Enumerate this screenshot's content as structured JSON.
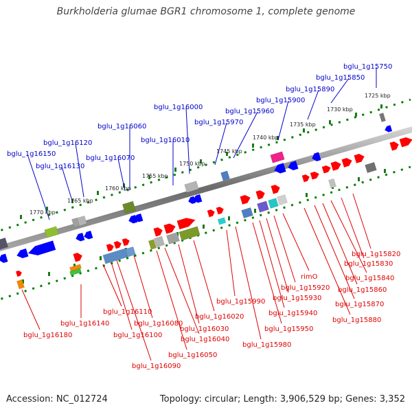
{
  "title": "Burkholderia glumae BGR1 chromosome 1, complete genome",
  "footer": {
    "accession": "Accession: NC_012724",
    "summary": "Topology: circular; Length: 3,906,529 bp; Genes: 3,352"
  },
  "colors": {
    "forward_label": "#0000cc",
    "reverse_label": "#dd0000",
    "forward_gene": "#0000ff",
    "reverse_gene": "#ff0000",
    "axis": "#888888",
    "tick": "#008000"
  },
  "ticks": [
    "1725 kbp",
    "1730 kbp",
    "1735 kbp",
    "1740 kbp",
    "1745 kbp",
    "1750 kbp",
    "1755 kbp",
    "1760 kbp",
    "1765 kbp",
    "1770 kbp"
  ],
  "forward_labels": [
    "bglu_1g15750",
    "bglu_1g15850",
    "bglu_1g15890",
    "bglu_1g15900",
    "bglu_1g15960",
    "bglu_1g15970",
    "bglu_1g16000",
    "bglu_1g16010",
    "bglu_1g16060",
    "bglu_1g16070",
    "bglu_1g16120",
    "bglu_1g16130",
    "bglu_1g16150"
  ],
  "reverse_labels": [
    "bglu_1g15820",
    "bglu_1g15830",
    "bglu_1g15840",
    "bglu_1g15860",
    "bglu_1g15870",
    "bglu_1g15880",
    "rimO",
    "bglu_1g15920",
    "bglu_1g15930",
    "bglu_1g15940",
    "bglu_1g15950",
    "bglu_1g15980",
    "bglu_1g15990",
    "bglu_1g16020",
    "bglu_1g16030",
    "bglu_1g16040",
    "bglu_1g16050",
    "bglu_1g16080",
    "bglu_1g16090",
    "bglu_1g16100",
    "bglu_1g16110",
    "bglu_1g16140",
    "bglu_1g16180"
  ]
}
